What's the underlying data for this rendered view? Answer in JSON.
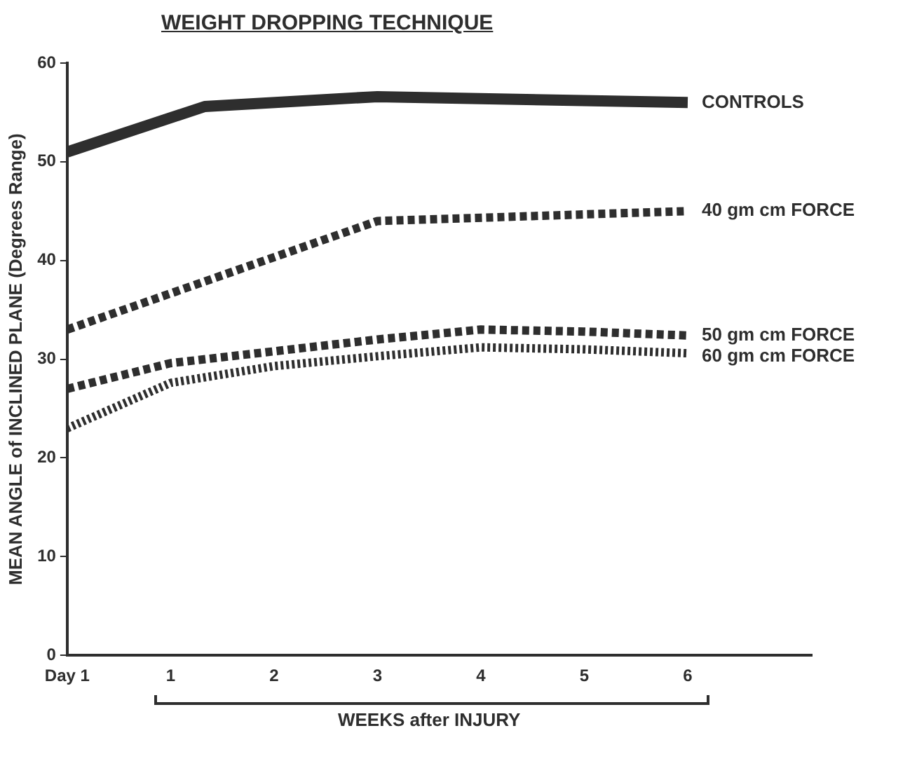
{
  "chart_data": {
    "type": "line",
    "title": "WEIGHT DROPPING TECHNIQUE",
    "xlabel": "WEEKS after INJURY",
    "ylabel": "MEAN ANGLE of INCLINED PLANE (Degrees Range)",
    "xlim": [
      0,
      7.2
    ],
    "xticks": [
      {
        "value": 0,
        "label": "Day 1"
      },
      1,
      2,
      3,
      4,
      5,
      6
    ],
    "ylim": [
      0,
      60
    ],
    "yticks": [
      0,
      10,
      20,
      30,
      40,
      50,
      60
    ],
    "grid": false,
    "legend": false,
    "marker": "none",
    "series": [
      {
        "name": "CONTROLS",
        "color": "#2e2e2e",
        "line_style": "solid",
        "x": [
          0,
          1.33,
          3,
          6
        ],
        "values": [
          51,
          55.6,
          56.6,
          56
        ]
      },
      {
        "name": "40 gm cm FORCE",
        "color": "#2e2e2e",
        "line_style": "dashed",
        "x": [
          0,
          3,
          6
        ],
        "values": [
          33,
          44,
          45
        ]
      },
      {
        "name": "50 gm cm FORCE",
        "color": "#2e2e2e",
        "line_style": "dashed",
        "x": [
          0,
          1,
          2,
          3,
          4,
          5,
          6
        ],
        "values": [
          27,
          29.6,
          30.8,
          32,
          33,
          32.8,
          32.4
        ]
      },
      {
        "name": "60 gm cm FORCE",
        "color": "#2e2e2e",
        "line_style": "dotted",
        "x": [
          0,
          1,
          2,
          3,
          4,
          5,
          6
        ],
        "values": [
          23,
          27.6,
          29.3,
          30.3,
          31.2,
          31,
          30.6
        ]
      }
    ]
  }
}
